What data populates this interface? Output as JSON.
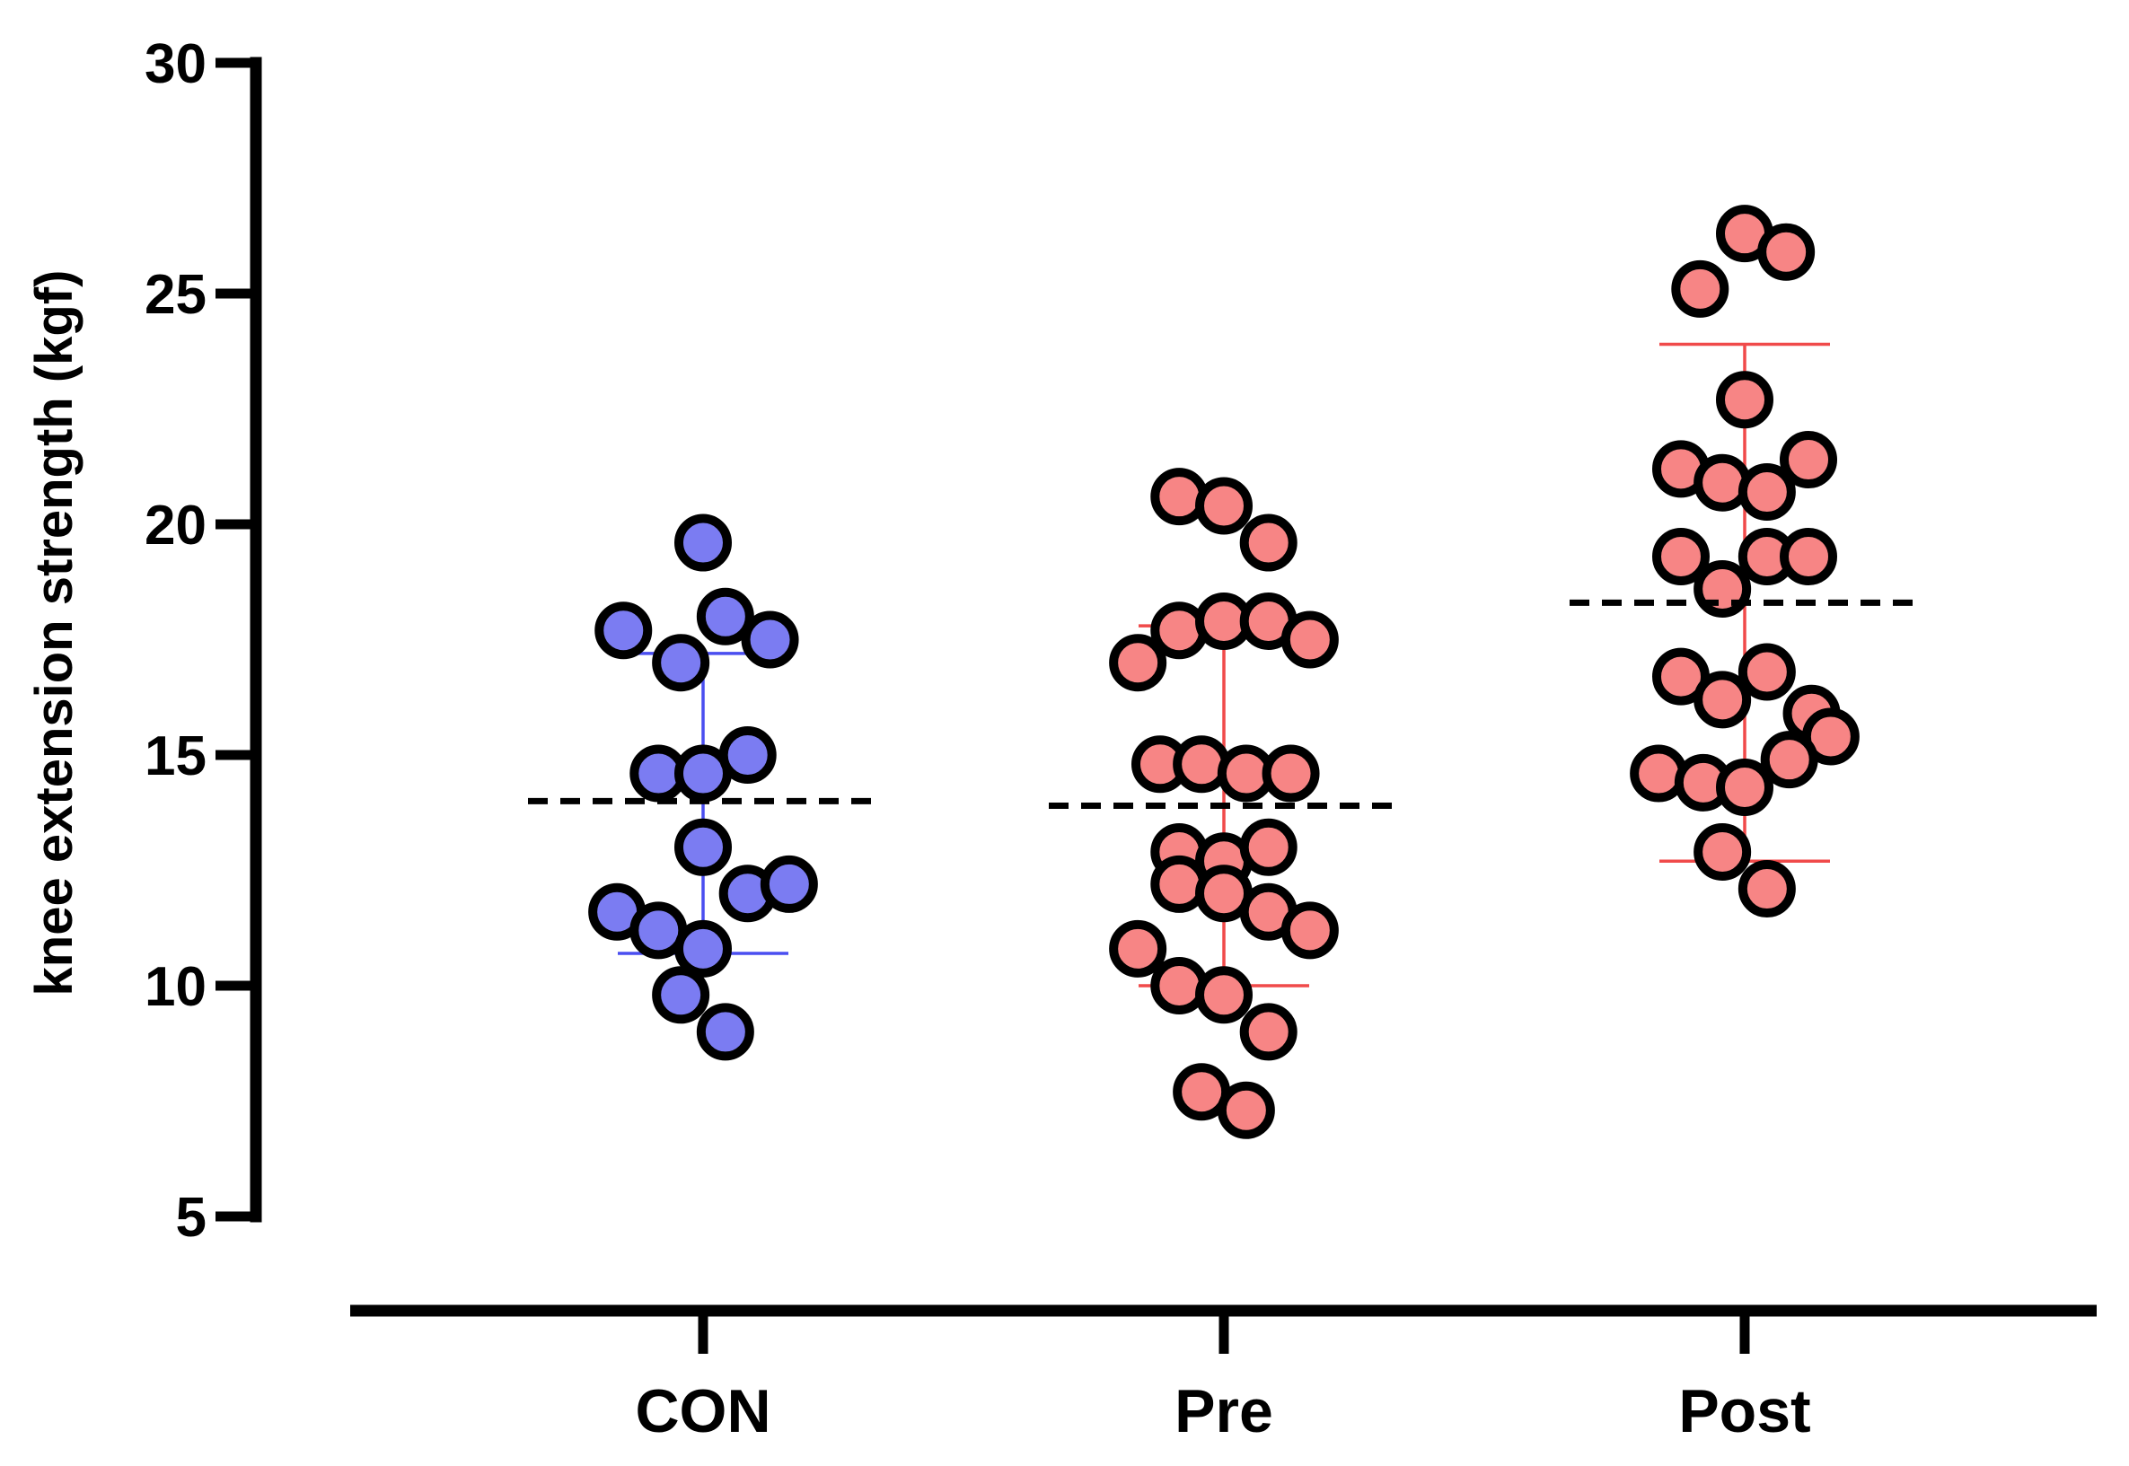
{
  "chart_data": {
    "type": "scatter",
    "ylabel": "knee extension strength (kgf)",
    "xlabel": "",
    "ylim": [
      5,
      30
    ],
    "yticks": [
      "5",
      "10",
      "15",
      "20",
      "25",
      "30"
    ],
    "categories": [
      "CON",
      "Pre",
      "Post"
    ],
    "grid": false,
    "legend": "none",
    "groups": [
      {
        "category": "CON",
        "fill": "#7b7cf2",
        "error_color": "#4a4ef0",
        "mean": 14.0,
        "sd_low": 10.7,
        "sd_high": 17.2,
        "points": [
          {
            "x": -0.25,
            "y": 17.7
          },
          {
            "x": -0.07,
            "y": 17.0
          },
          {
            "x": 0.0,
            "y": 19.6
          },
          {
            "x": 0.07,
            "y": 18.0
          },
          {
            "x": 0.21,
            "y": 17.5
          },
          {
            "x": -0.14,
            "y": 14.6
          },
          {
            "x": 0.0,
            "y": 14.6
          },
          {
            "x": 0.14,
            "y": 15.0
          },
          {
            "x": 0.0,
            "y": 13.0
          },
          {
            "x": -0.27,
            "y": 11.6
          },
          {
            "x": -0.14,
            "y": 11.2
          },
          {
            "x": 0.0,
            "y": 10.8
          },
          {
            "x": 0.14,
            "y": 12.0
          },
          {
            "x": 0.27,
            "y": 12.2
          },
          {
            "x": -0.07,
            "y": 9.8
          },
          {
            "x": 0.07,
            "y": 9.0
          }
        ]
      },
      {
        "category": "Pre",
        "fill": "#f78585",
        "error_color": "#f04a4a",
        "mean": 13.9,
        "sd_low": 10.0,
        "sd_high": 17.8,
        "points": [
          {
            "x": -0.14,
            "y": 20.6
          },
          {
            "x": 0.0,
            "y": 20.4
          },
          {
            "x": 0.14,
            "y": 19.6
          },
          {
            "x": -0.27,
            "y": 17.0
          },
          {
            "x": -0.14,
            "y": 17.7
          },
          {
            "x": 0.0,
            "y": 17.9
          },
          {
            "x": 0.14,
            "y": 17.9
          },
          {
            "x": 0.27,
            "y": 17.5
          },
          {
            "x": -0.2,
            "y": 14.8
          },
          {
            "x": -0.07,
            "y": 14.8
          },
          {
            "x": 0.07,
            "y": 14.6
          },
          {
            "x": 0.21,
            "y": 14.6
          },
          {
            "x": -0.14,
            "y": 12.9
          },
          {
            "x": 0.0,
            "y": 12.7
          },
          {
            "x": 0.14,
            "y": 13.0
          },
          {
            "x": -0.14,
            "y": 12.2
          },
          {
            "x": 0.0,
            "y": 12.0
          },
          {
            "x": 0.14,
            "y": 11.6
          },
          {
            "x": 0.27,
            "y": 11.2
          },
          {
            "x": -0.27,
            "y": 10.8
          },
          {
            "x": -0.14,
            "y": 10.0
          },
          {
            "x": 0.0,
            "y": 9.8
          },
          {
            "x": 0.14,
            "y": 9.0
          },
          {
            "x": -0.07,
            "y": 7.7
          },
          {
            "x": 0.07,
            "y": 7.3
          }
        ]
      },
      {
        "category": "Post",
        "fill": "#f78585",
        "error_color": "#f04a4a",
        "mean": 18.3,
        "sd_low": 12.7,
        "sd_high": 23.9,
        "points": [
          {
            "x": 0.0,
            "y": 26.3
          },
          {
            "x": 0.13,
            "y": 25.9
          },
          {
            "x": -0.14,
            "y": 25.1
          },
          {
            "x": 0.0,
            "y": 22.7
          },
          {
            "x": -0.2,
            "y": 21.2
          },
          {
            "x": -0.07,
            "y": 20.9
          },
          {
            "x": 0.07,
            "y": 20.7
          },
          {
            "x": 0.2,
            "y": 21.4
          },
          {
            "x": -0.2,
            "y": 19.3
          },
          {
            "x": -0.07,
            "y": 18.6
          },
          {
            "x": 0.07,
            "y": 19.3
          },
          {
            "x": 0.2,
            "y": 19.3
          },
          {
            "x": -0.2,
            "y": 16.7
          },
          {
            "x": -0.07,
            "y": 16.2
          },
          {
            "x": 0.07,
            "y": 16.8
          },
          {
            "x": 0.21,
            "y": 15.9
          },
          {
            "x": 0.27,
            "y": 15.4
          },
          {
            "x": 0.14,
            "y": 14.9
          },
          {
            "x": -0.27,
            "y": 14.6
          },
          {
            "x": -0.13,
            "y": 14.4
          },
          {
            "x": 0.0,
            "y": 14.3
          },
          {
            "x": -0.07,
            "y": 12.9
          },
          {
            "x": 0.07,
            "y": 12.1
          }
        ]
      }
    ]
  }
}
